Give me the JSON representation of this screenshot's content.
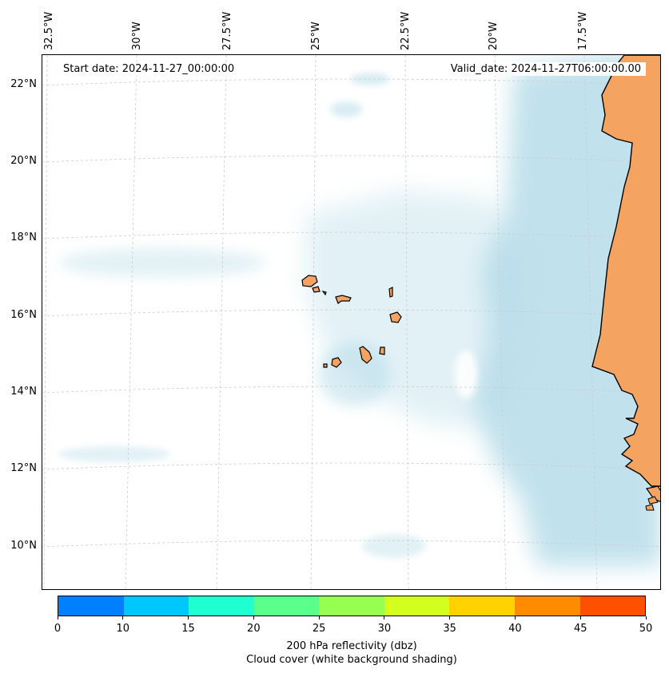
{
  "map": {
    "start_date": "Start date: 2024-11-27_00:00:00",
    "valid_date": "Valid_date: 2024-11-27T06:00:00.00",
    "lon_labels": [
      "32.5°W",
      "30°W",
      "27.5°W",
      "25°W",
      "22.5°W",
      "20°W",
      "17.5°W"
    ],
    "lat_labels": [
      "22°N",
      "20°N",
      "18°N",
      "16°N",
      "14°N",
      "12°N",
      "10°N"
    ],
    "colors": {
      "land": "#f4a460",
      "land_light": "#f7c79a",
      "cloud": "#add8e6",
      "grid": "#cccccc"
    }
  },
  "colorbar": {
    "ticks": [
      "0",
      "10",
      "15",
      "20",
      "25",
      "30",
      "35",
      "40",
      "45",
      "50"
    ],
    "colors": [
      "#0080ff",
      "#00c8ff",
      "#1effd2",
      "#5aff8c",
      "#96ff50",
      "#d2ff1e",
      "#ffd200",
      "#ff8c00",
      "#ff5000"
    ],
    "label_line1": "200 hPa reflectivity (dbz)",
    "label_line2": "Cloud cover (white background shading)"
  }
}
